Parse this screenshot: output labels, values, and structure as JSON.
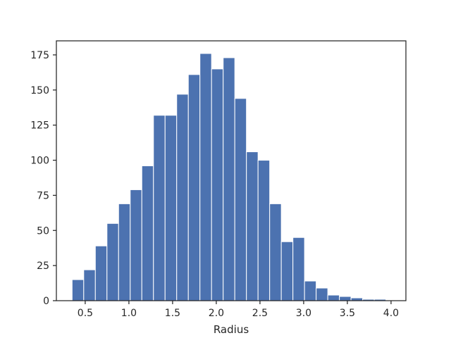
{
  "chart_data": {
    "type": "bar",
    "title": "",
    "xlabel": "Radius",
    "ylabel": "",
    "xlim": [
      0.17,
      4.17
    ],
    "ylim": [
      0,
      185
    ],
    "grid": false,
    "bar_color": "#4c72b0",
    "bin_edges": [
      0.35,
      0.483,
      0.616,
      0.749,
      0.882,
      1.015,
      1.148,
      1.281,
      1.414,
      1.547,
      1.68,
      1.813,
      1.946,
      2.079,
      2.212,
      2.345,
      2.478,
      2.611,
      2.744,
      2.877,
      3.01,
      3.143,
      3.276,
      3.409,
      3.542,
      3.675,
      3.808,
      3.941
    ],
    "counts": [
      15,
      22,
      39,
      55,
      69,
      79,
      96,
      132,
      132,
      147,
      161,
      176,
      165,
      173,
      144,
      106,
      100,
      69,
      42,
      45,
      14,
      9,
      4,
      3,
      2,
      1,
      1
    ],
    "x_ticks": [
      0.5,
      1.0,
      1.5,
      2.0,
      2.5,
      3.0,
      3.5,
      4.0
    ],
    "x_tick_labels": [
      "0.5",
      "1.0",
      "1.5",
      "2.0",
      "2.5",
      "3.0",
      "3.5",
      "4.0"
    ],
    "y_ticks": [
      0,
      25,
      50,
      75,
      100,
      125,
      150,
      175
    ],
    "y_tick_labels": [
      "0",
      "25",
      "50",
      "75",
      "100",
      "125",
      "150",
      "175"
    ]
  }
}
